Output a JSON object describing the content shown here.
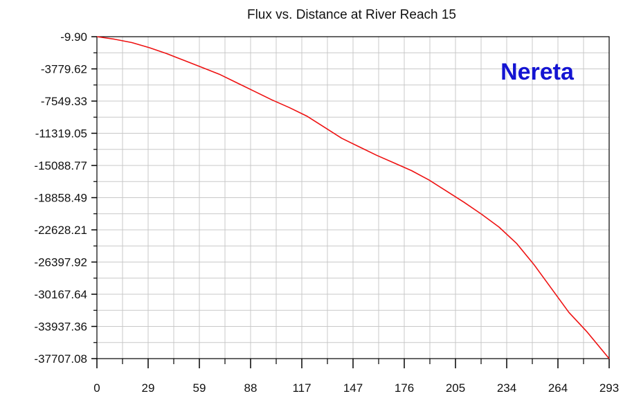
{
  "chart_data": {
    "type": "line",
    "title": "Flux vs. Distance at River Reach 15",
    "xlabel": "",
    "ylabel": "",
    "annotation": "Nereta",
    "annotation_color": "#1414d2",
    "line_color": "#ee1111",
    "grid_color": "#c8c8c8",
    "grid": true,
    "xlim": [
      0,
      293
    ],
    "ylim": [
      -37707.08,
      -9.9
    ],
    "x_ticks": [
      "0",
      "29",
      "59",
      "88",
      "117",
      "147",
      "176",
      "205",
      "234",
      "264",
      "293"
    ],
    "y_ticks": [
      "-9.90",
      "-3779.62",
      "-7549.33",
      "-11319.05",
      "-15088.77",
      "-18858.49",
      "-22628.21",
      "-26397.92",
      "-30167.64",
      "-33937.36",
      "-37707.08"
    ],
    "series": [
      {
        "x": [
          0,
          10,
          20,
          30,
          40,
          50,
          60,
          70,
          80,
          90,
          100,
          110,
          120,
          130,
          140,
          150,
          160,
          170,
          180,
          190,
          200,
          210,
          220,
          230,
          240,
          250,
          260,
          270,
          280,
          293
        ],
        "y": [
          -9.9,
          -300,
          -700,
          -1300,
          -2000,
          -2800,
          -3600,
          -4400,
          -5400,
          -6400,
          -7400,
          -8300,
          -9300,
          -10600,
          -11900,
          -12900,
          -13900,
          -14800,
          -15700,
          -16800,
          -18100,
          -19400,
          -20800,
          -22300,
          -24200,
          -26700,
          -29500,
          -32300,
          -34500,
          -37707.08
        ]
      }
    ]
  }
}
